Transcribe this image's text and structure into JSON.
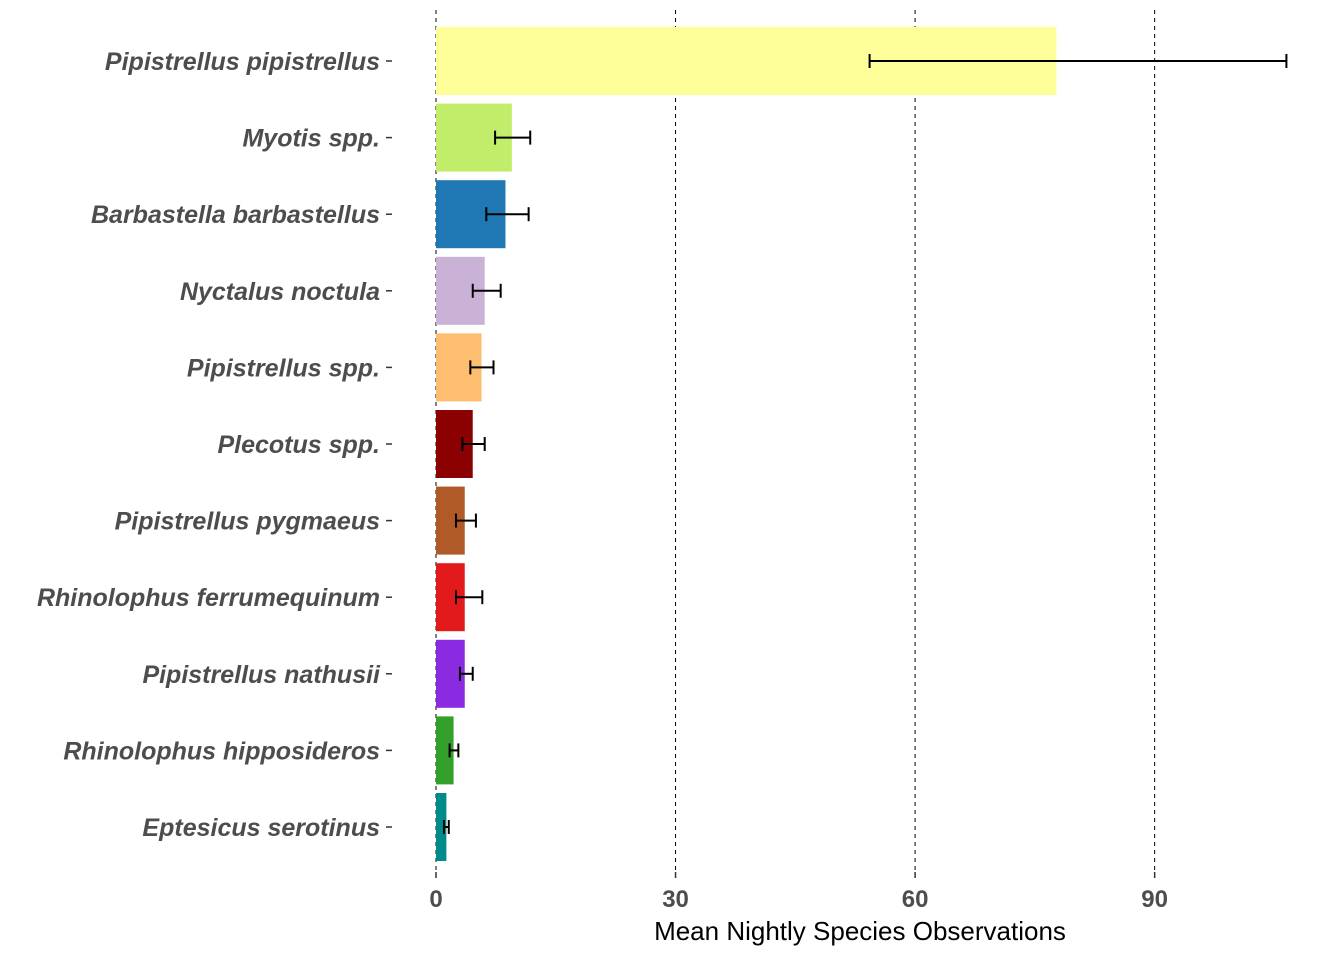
{
  "chart_data": {
    "type": "bar",
    "orientation": "horizontal",
    "title": "",
    "xlabel": "Mean Nightly Species Observations",
    "ylabel": "",
    "xlim": [
      0,
      106
    ],
    "xticks": [
      0,
      30,
      60,
      90
    ],
    "grid": "vertical dashed at major ticks",
    "legend": "none",
    "categories": [
      "Pipistrellus pipistrellus",
      "Myotis spp.",
      "Barbastella barbastellus",
      "Nyctalus noctula",
      "Pipistrellus spp.",
      "Plecotus spp.",
      "Pipistrellus pygmaeus",
      "Rhinolophus ferrumequinum",
      "Pipistrellus nathusii",
      "Rhinolophus hipposideros",
      "Eptesicus serotinus"
    ],
    "values": [
      77.7,
      9.5,
      8.7,
      6.1,
      5.7,
      4.6,
      3.6,
      3.6,
      3.6,
      2.2,
      1.3
    ],
    "error_low": [
      54.3,
      7.4,
      6.3,
      4.6,
      4.3,
      3.3,
      2.5,
      2.5,
      3.0,
      1.7,
      1.0
    ],
    "error_high": [
      106.5,
      11.8,
      11.6,
      8.1,
      7.2,
      6.1,
      5.0,
      5.8,
      4.6,
      2.8,
      1.6
    ],
    "colors": [
      "#ffff99",
      "#c2ed6a",
      "#1f78b4",
      "#cab2d6",
      "#fdbf6f",
      "#8b0000",
      "#b05a28",
      "#e31a1c",
      "#8a2be2",
      "#33a02c",
      "#008b8b"
    ]
  }
}
